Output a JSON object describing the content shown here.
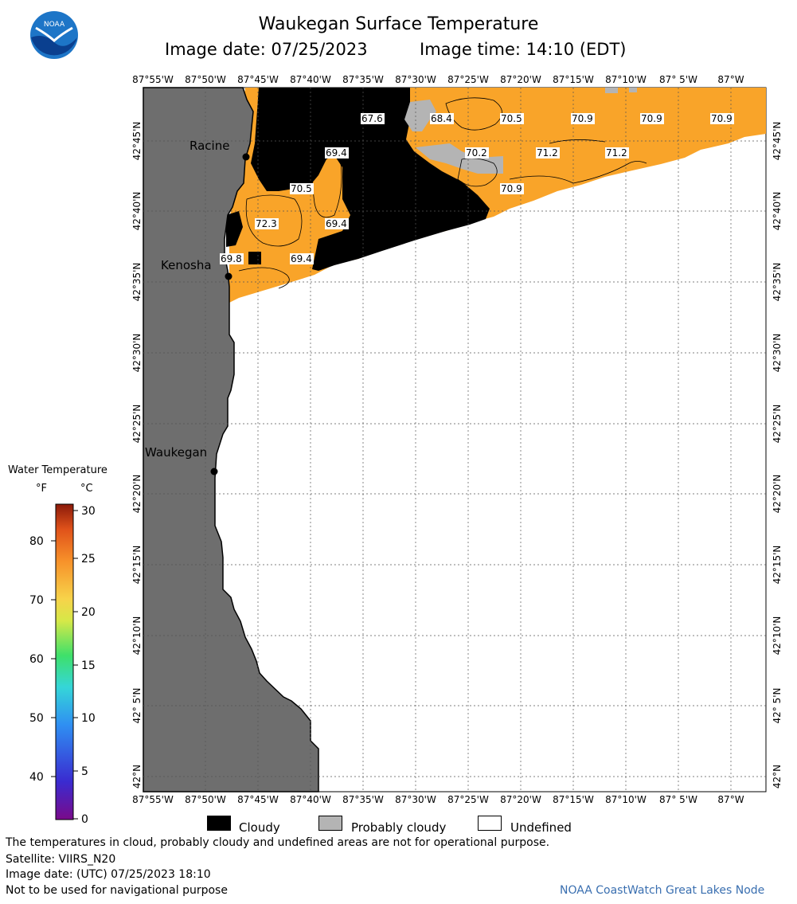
{
  "title": "Waukegan Surface Temperature",
  "image_date": "Image date: 07/25/2023",
  "image_time": "Image time: 14:10 (EDT)",
  "logo_text": "NOAA",
  "lon_labels": [
    "87°55'W",
    "87°50'W",
    "87°45'W",
    "87°40'W",
    "87°35'W",
    "87°30'W",
    "87°25'W",
    "87°20'W",
    "87°15'W",
    "87°10'W",
    "87° 5'W",
    "87°W"
  ],
  "lat_labels": [
    "42°45'N",
    "42°40'N",
    "42°35'N",
    "42°30'N",
    "42°25'N",
    "42°20'N",
    "42°15'N",
    "42°10'N",
    "42° 5'N",
    "42°N"
  ],
  "cities": [
    "Racine",
    "Kenosha",
    "Waukegan"
  ],
  "temperature_labels": [
    "67.6",
    "68.4",
    "70.5",
    "70.9",
    "70.9",
    "70.9",
    "69.4",
    "70.2",
    "71.2",
    "71.2",
    "70.5",
    "70.9",
    "72.3",
    "69.4",
    "69.8",
    "69.4"
  ],
  "colorbar": {
    "title": "Water Temperature",
    "unit_f": "°F",
    "unit_c": "°C",
    "f_ticks": [
      "80",
      "70",
      "60",
      "50",
      "40"
    ],
    "c_ticks": [
      "30",
      "25",
      "20",
      "15",
      "10",
      "5",
      "0"
    ]
  },
  "legend": {
    "cloudy": "Cloudy",
    "probably_cloudy": "Probably cloudy",
    "undefined": "Undefined"
  },
  "colors": {
    "land": "#6e6e6e",
    "cloud": "#000000",
    "probably_cloudy": "#b4b4b4",
    "warm_water": "#f9a429",
    "credit": "#3a6fb0"
  },
  "footer": {
    "disclaimer": "The temperatures in cloud, probably cloudy and undefined areas are not for operational purpose.",
    "satellite": "Satellite: VIIRS_N20",
    "utc_date": "Image date: (UTC) 07/25/2023  18:10",
    "nav": "Not to be used for navigational purpose",
    "credit": "NOAA CoastWatch Great Lakes Node"
  }
}
